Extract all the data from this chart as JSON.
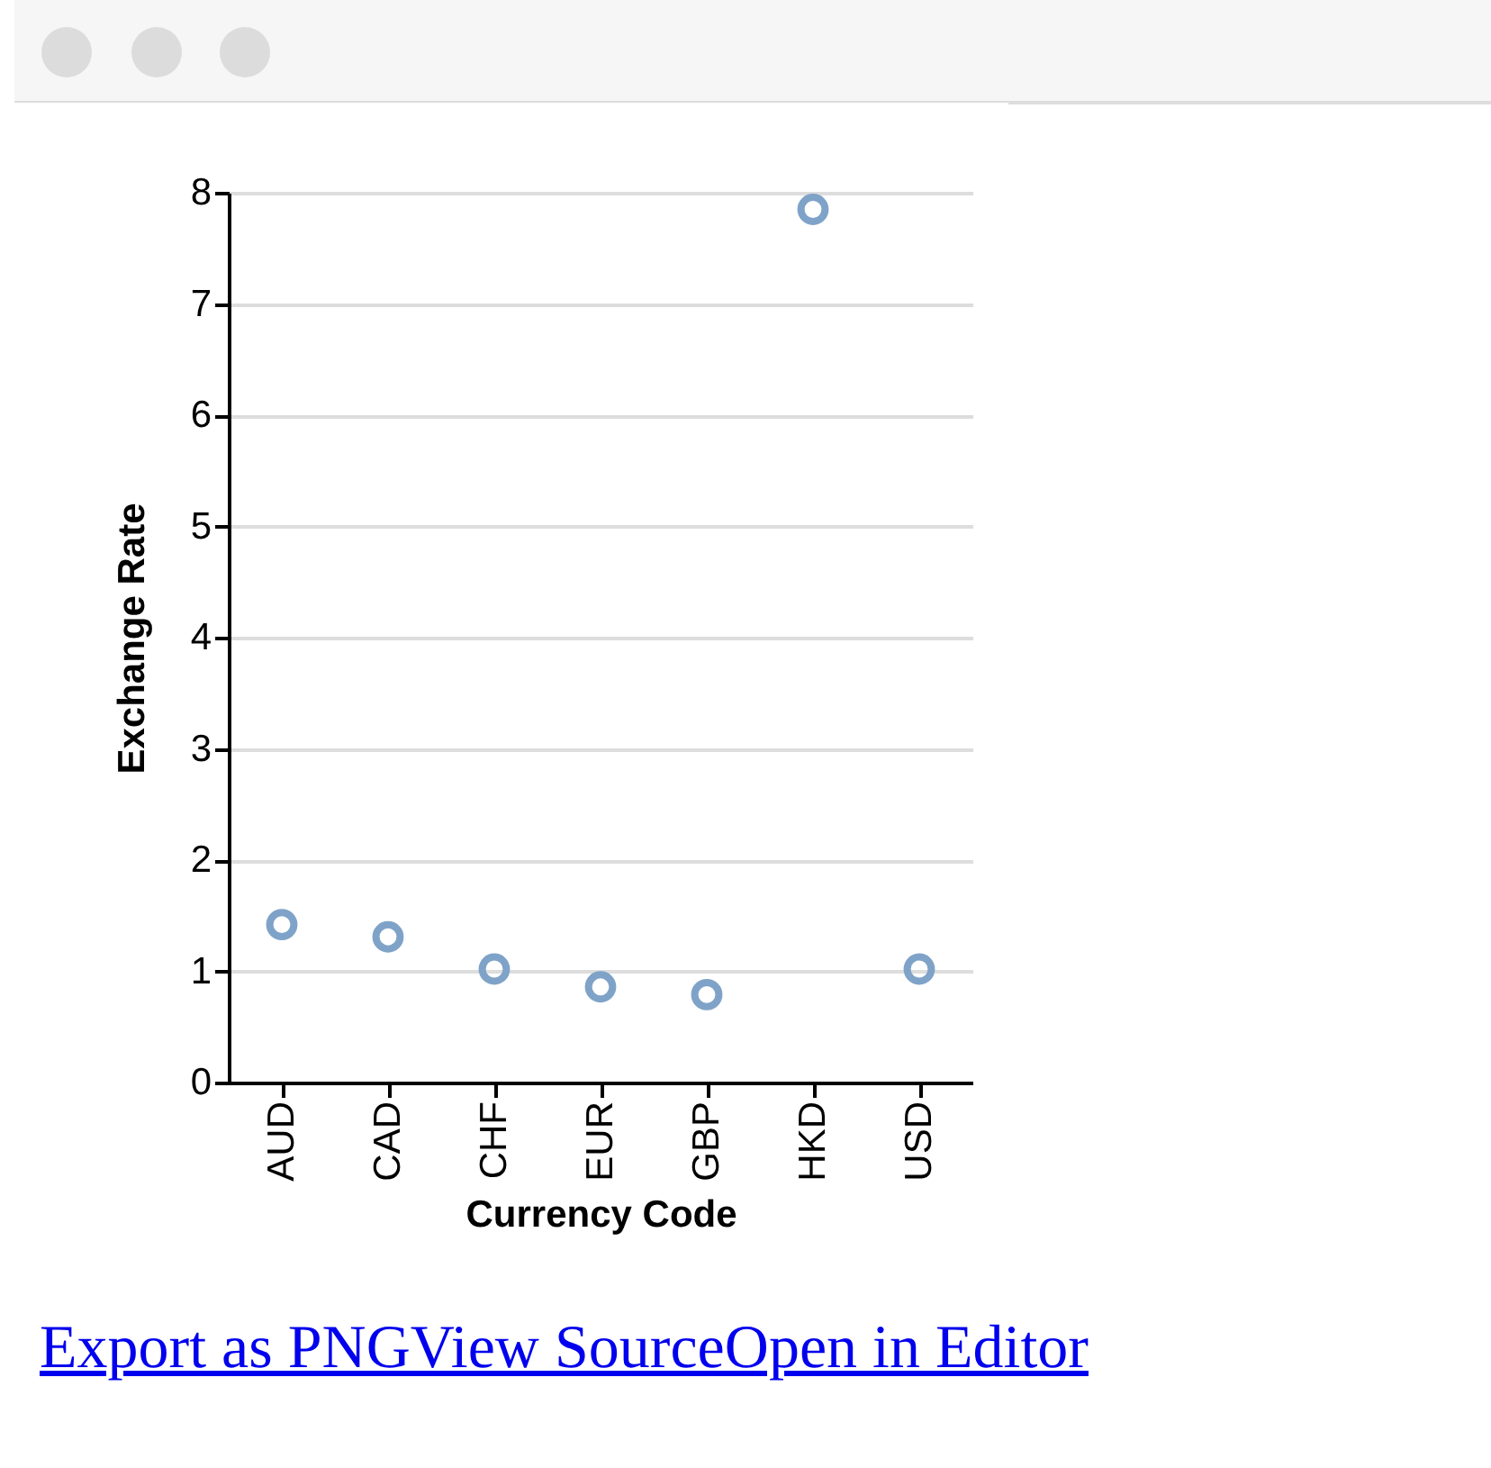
{
  "chart_data": {
    "type": "scatter",
    "xlabel": "Currency Code",
    "ylabel": "Exchange Rate",
    "categories": [
      "AUD",
      "CAD",
      "CHF",
      "EUR",
      "GBP",
      "HKD",
      "USD"
    ],
    "values": [
      1.42,
      1.31,
      1.02,
      0.86,
      0.79,
      7.85,
      1.02
    ],
    "color": "#7fa3c8",
    "marker": "circle",
    "ylim": [
      0,
      8
    ],
    "yticks": [
      0,
      1,
      2,
      3,
      4,
      5,
      6,
      7,
      8
    ],
    "grid": "y",
    "annotations": [
      "Export as PNGView SourceOpen in Editor"
    ]
  }
}
